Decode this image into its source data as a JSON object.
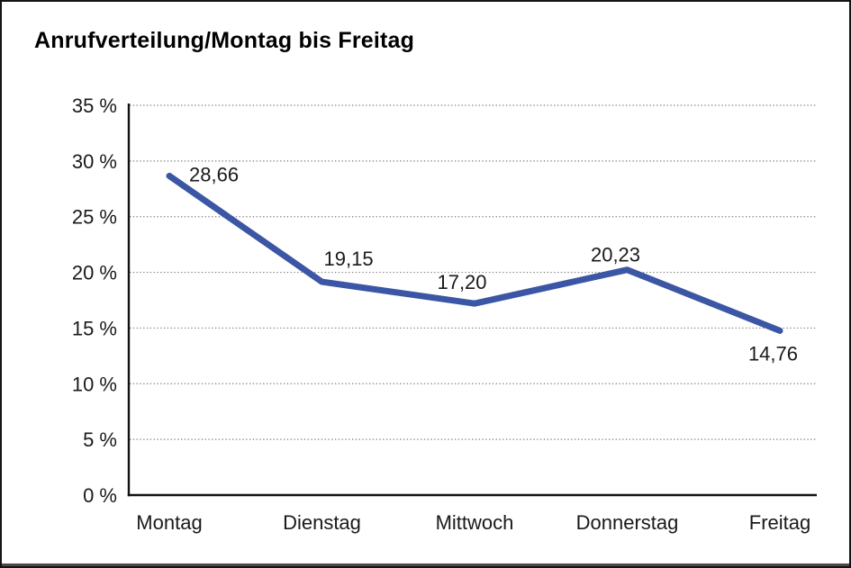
{
  "page": {
    "background": "#ffffff",
    "frame_border_color": "#141414",
    "frame_bottom_edge_color": "#4a4a4a"
  },
  "chart_data": {
    "type": "line",
    "title": "Anrufverteilung/Montag bis Freitag",
    "categories": [
      "Montag",
      "Dienstag",
      "Mittwoch",
      "Donnerstag",
      "Freitag"
    ],
    "series": [
      {
        "name": "Anrufverteilung",
        "values": [
          28.66,
          19.15,
          17.2,
          20.23,
          14.76
        ]
      }
    ],
    "value_labels": [
      "28,66",
      "19,15",
      "17,20",
      "20,23",
      "14,76"
    ],
    "y_tick_labels": [
      "35 %",
      "30 %",
      "25 %",
      "20 %",
      "15 %",
      "10 %",
      "5 %",
      "0 %"
    ],
    "y_tick_values": [
      35,
      30,
      25,
      20,
      15,
      10,
      5,
      0
    ],
    "ylim": [
      0,
      35
    ],
    "xlabel": "",
    "ylabel": "",
    "grid": "horizontal-dotted",
    "legend_position": "none",
    "line_color": "#3a56a4",
    "gridline_color": "#7a7a7a",
    "axis_color": "#111111",
    "text_color": "#1a1a1a"
  }
}
